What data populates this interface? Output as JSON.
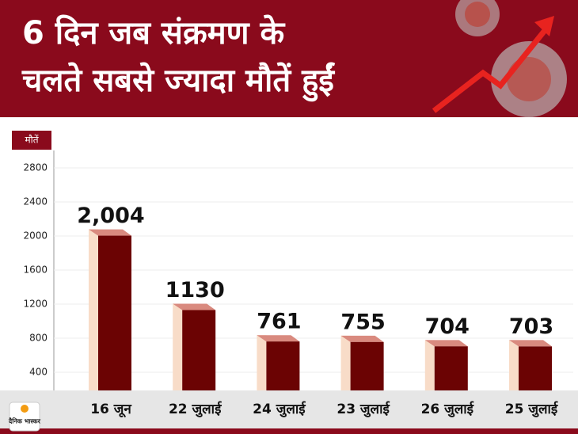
{
  "chart_data": {
    "type": "bar",
    "title": [
      "6 दिन जब संक्रमण के",
      "चलते सबसे ज्यादा मौतें हुईं"
    ],
    "y_label": "मौतें",
    "categories": [
      "16 जून",
      "22 जुलाई",
      "24 जुलाई",
      "23 जुलाई",
      "26 जुलाई",
      "25 जुलाई"
    ],
    "values": [
      2004,
      1130,
      761,
      755,
      704,
      703
    ],
    "value_labels": [
      "2,004",
      "1130",
      "761",
      "755",
      "704",
      "703"
    ],
    "color": "#6b0303",
    "ylim": [
      200,
      3000
    ],
    "yticks": [
      400,
      800,
      1200,
      1600,
      2000,
      2400,
      2800
    ],
    "grid": true,
    "logo": "दैनिक भास्कर"
  }
}
